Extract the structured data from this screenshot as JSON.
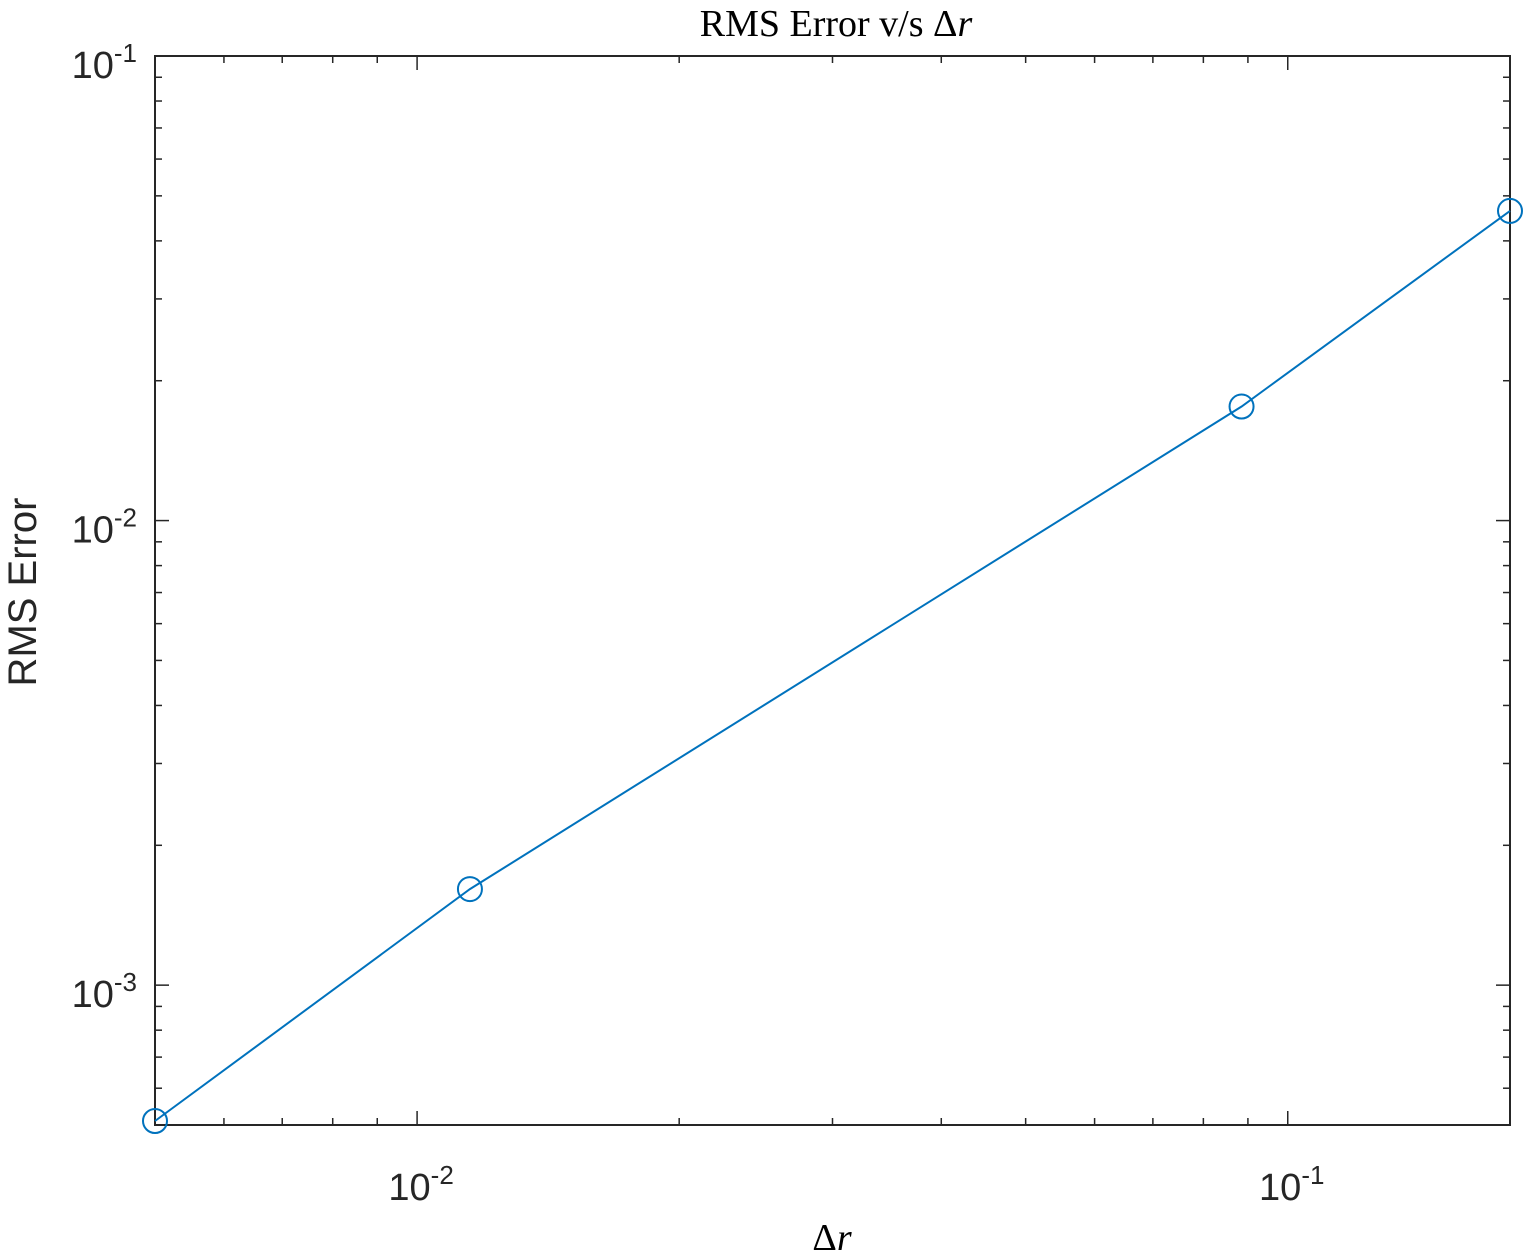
{
  "chart_data": {
    "type": "line",
    "title": "RMS Error v/s Δr",
    "title_prefix": "RMS Error v/s ",
    "title_delta": "Δ",
    "title_var": "r",
    "xlabel_delta": "Δ",
    "xlabel_var": "r",
    "xlabel": "Δr",
    "ylabel": "RMS Error",
    "x_scale": "log",
    "y_scale": "log",
    "xlim": [
      0.005,
      0.18
    ],
    "ylim": [
      0.0005,
      0.1
    ],
    "x_ticks": [
      {
        "value": 0.01,
        "base": "10",
        "exp": "-2"
      },
      {
        "value": 0.1,
        "base": "10",
        "exp": "-1"
      }
    ],
    "y_ticks": [
      {
        "value": 0.001,
        "base": "10",
        "exp": "-3"
      },
      {
        "value": 0.01,
        "base": "10",
        "exp": "-2"
      },
      {
        "value": 0.1,
        "base": "10",
        "exp": "-1"
      }
    ],
    "grid": false,
    "box": true,
    "series": [
      {
        "marker": "circle",
        "color": "#0072BD",
        "x": [
          0.005,
          0.0115,
          0.0885,
          0.18
        ],
        "y": [
          0.00051,
          0.00161,
          0.0176,
          0.0464
        ]
      }
    ]
  }
}
